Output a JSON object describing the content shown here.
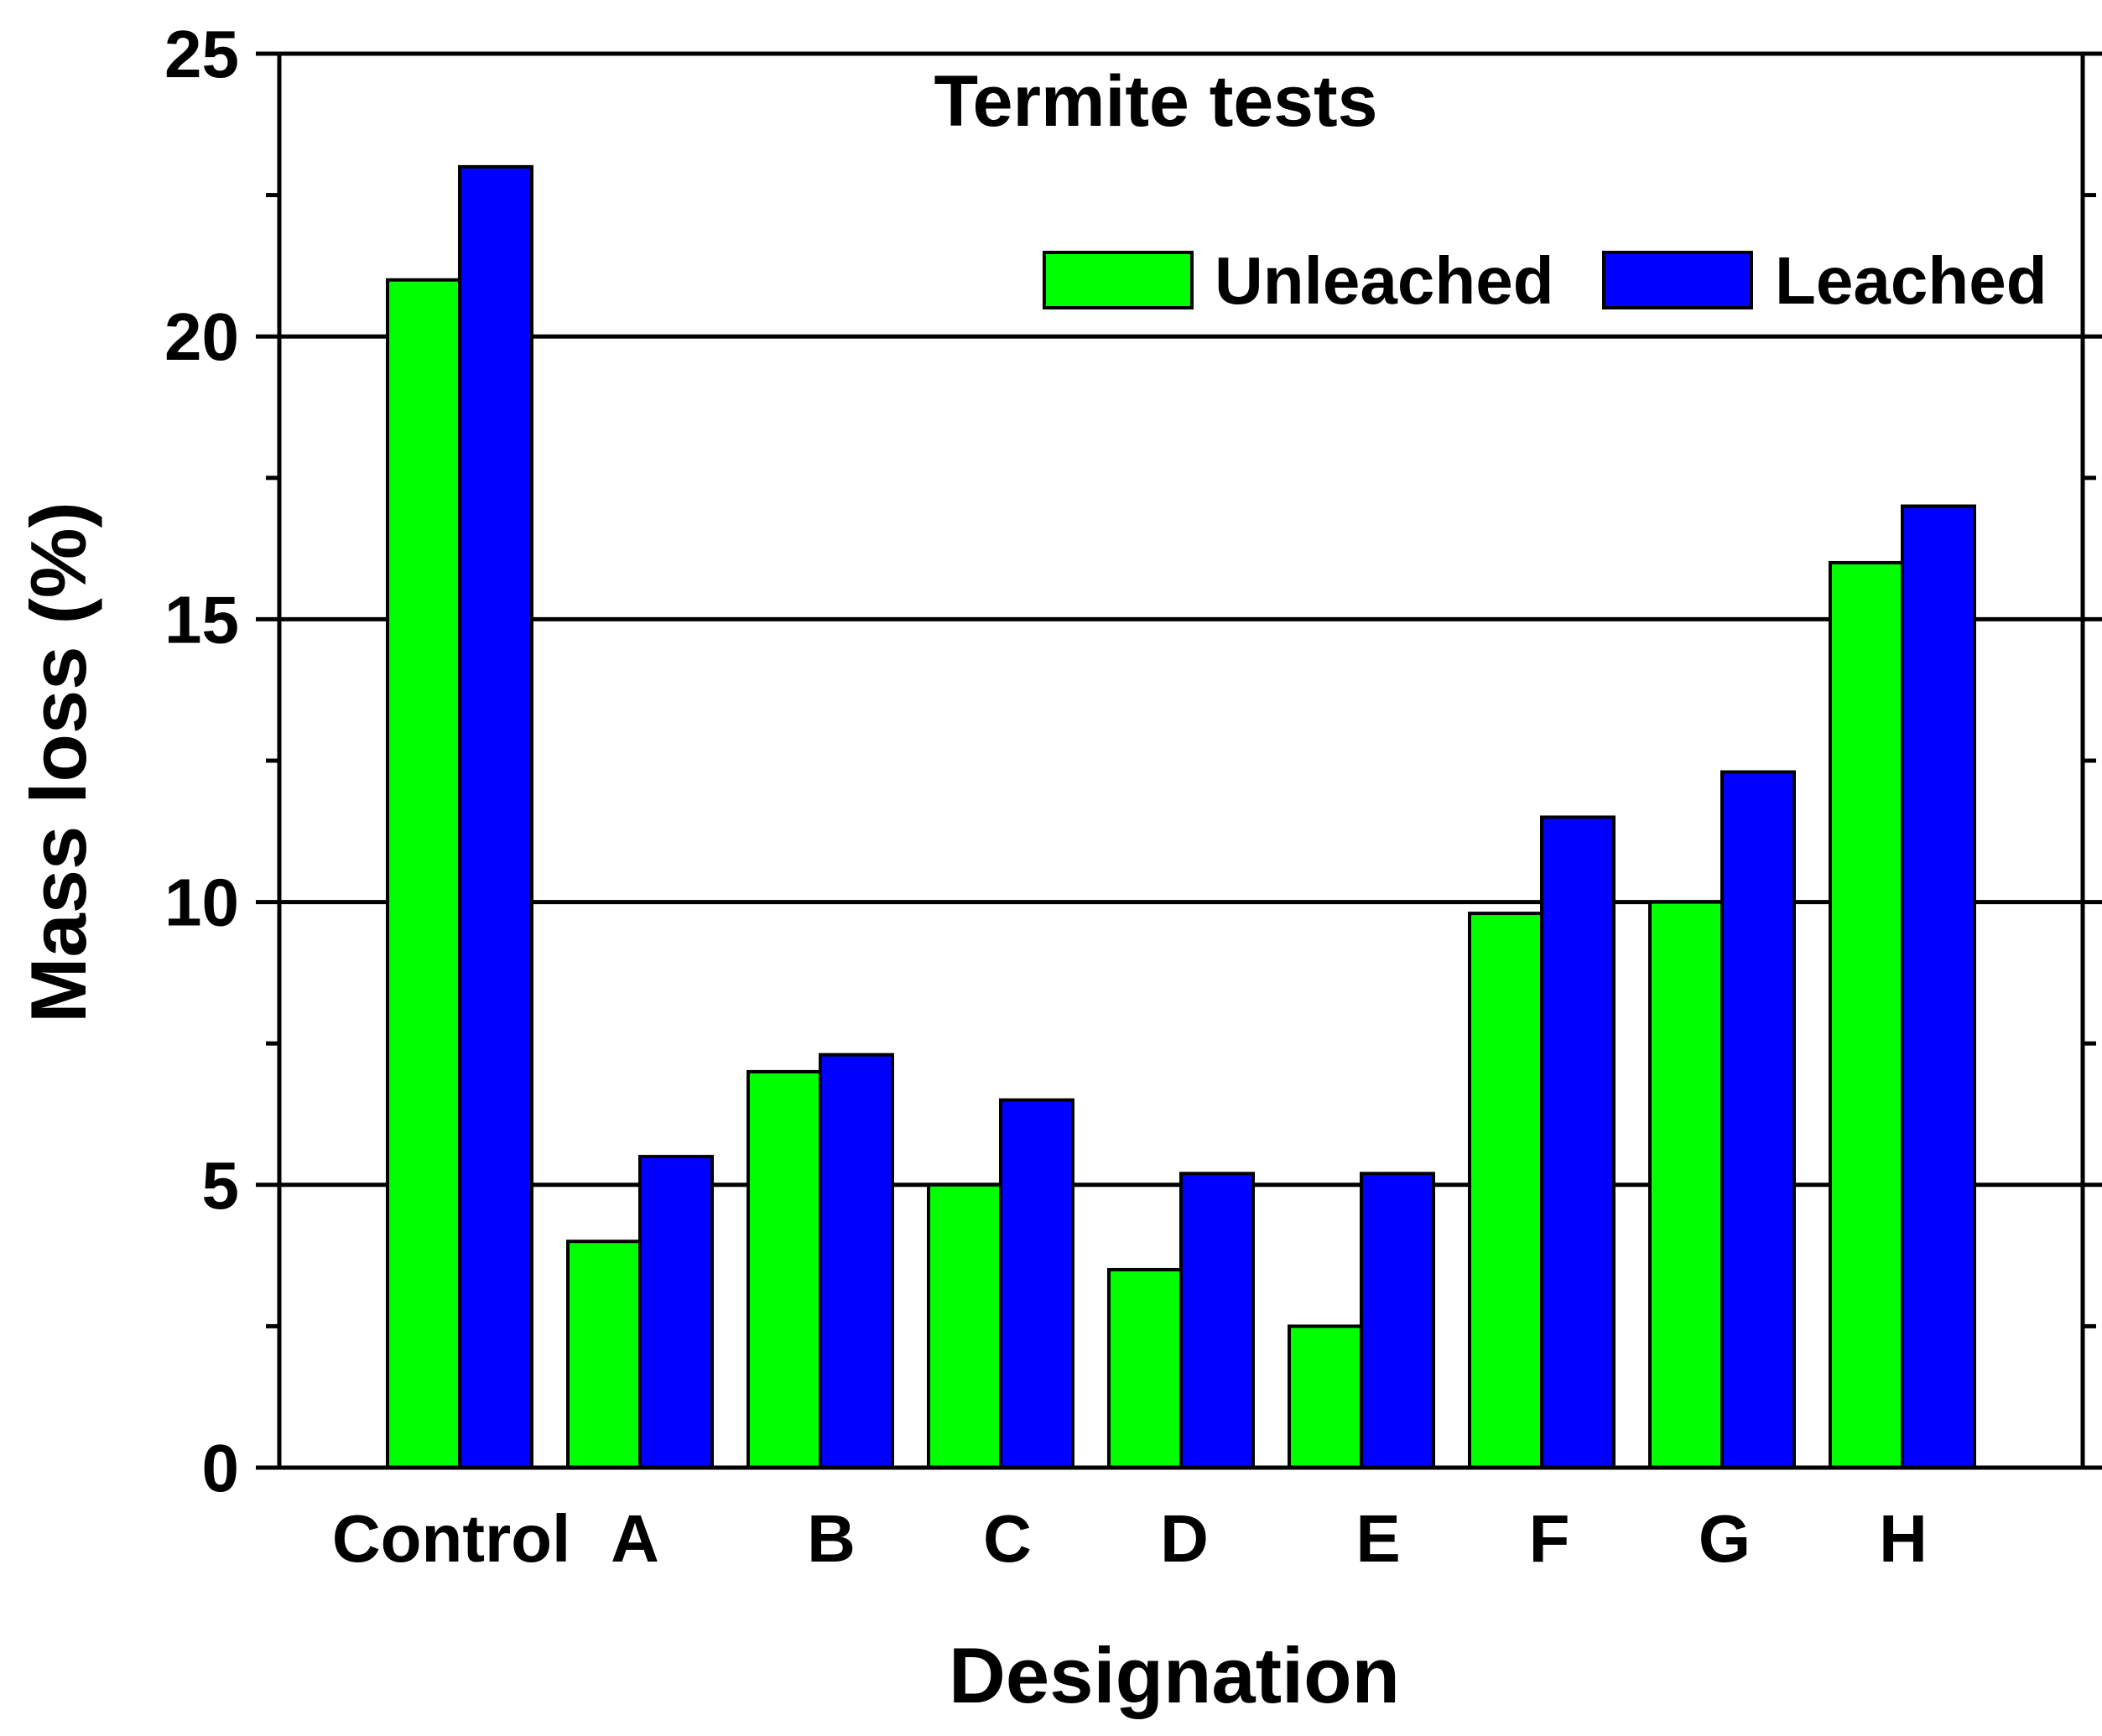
{
  "chart_data": {
    "type": "bar",
    "title": "Termite tests",
    "xlabel": "Designation",
    "ylabel": "Mass loss (%)",
    "ylim": [
      0,
      25
    ],
    "yticks": [
      0,
      5,
      10,
      15,
      20,
      25
    ],
    "grid": "horizontal at major ticks",
    "legend_position": "top-right",
    "categories": [
      "Control",
      "A",
      "B",
      "C",
      "D",
      "E",
      "F",
      "G",
      "H"
    ],
    "series": [
      {
        "name": "Unleached",
        "color": "#00ff00",
        "values": [
          21,
          4,
          7,
          5,
          3.5,
          2.5,
          9.8,
          10,
          16
        ]
      },
      {
        "name": "Leached",
        "color": "#0000ff",
        "values": [
          23,
          5.5,
          7.3,
          6.5,
          5.2,
          5.2,
          11.5,
          12.3,
          17
        ]
      }
    ]
  }
}
